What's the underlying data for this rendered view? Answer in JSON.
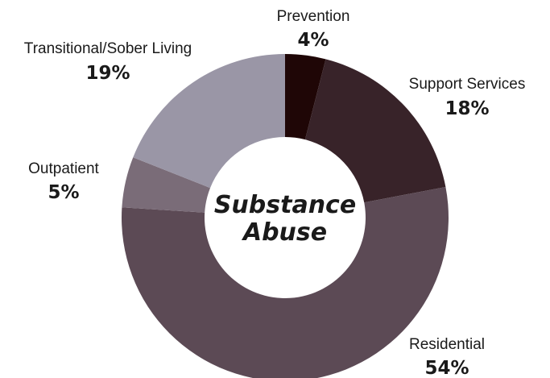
{
  "chart_data": {
    "type": "pie",
    "title": "Substance Abuse",
    "center_label": [
      "Substance",
      "Abuse"
    ],
    "donut": true,
    "slices": [
      {
        "label": "Prevention",
        "display": "4%",
        "value": 4,
        "color": "#1f0606"
      },
      {
        "label": "Support Services",
        "display": "18%",
        "value": 18,
        "color": "#382329"
      },
      {
        "label": "Residential",
        "display": "54%",
        "value": 54,
        "color": "#5c4a55"
      },
      {
        "label": "Outpatient",
        "display": "5%",
        "value": 5,
        "color": "#7a6c78"
      },
      {
        "label": "Transitional/Sober Living",
        "display": "19%",
        "value": 19,
        "color": "#9a96a6"
      }
    ]
  }
}
